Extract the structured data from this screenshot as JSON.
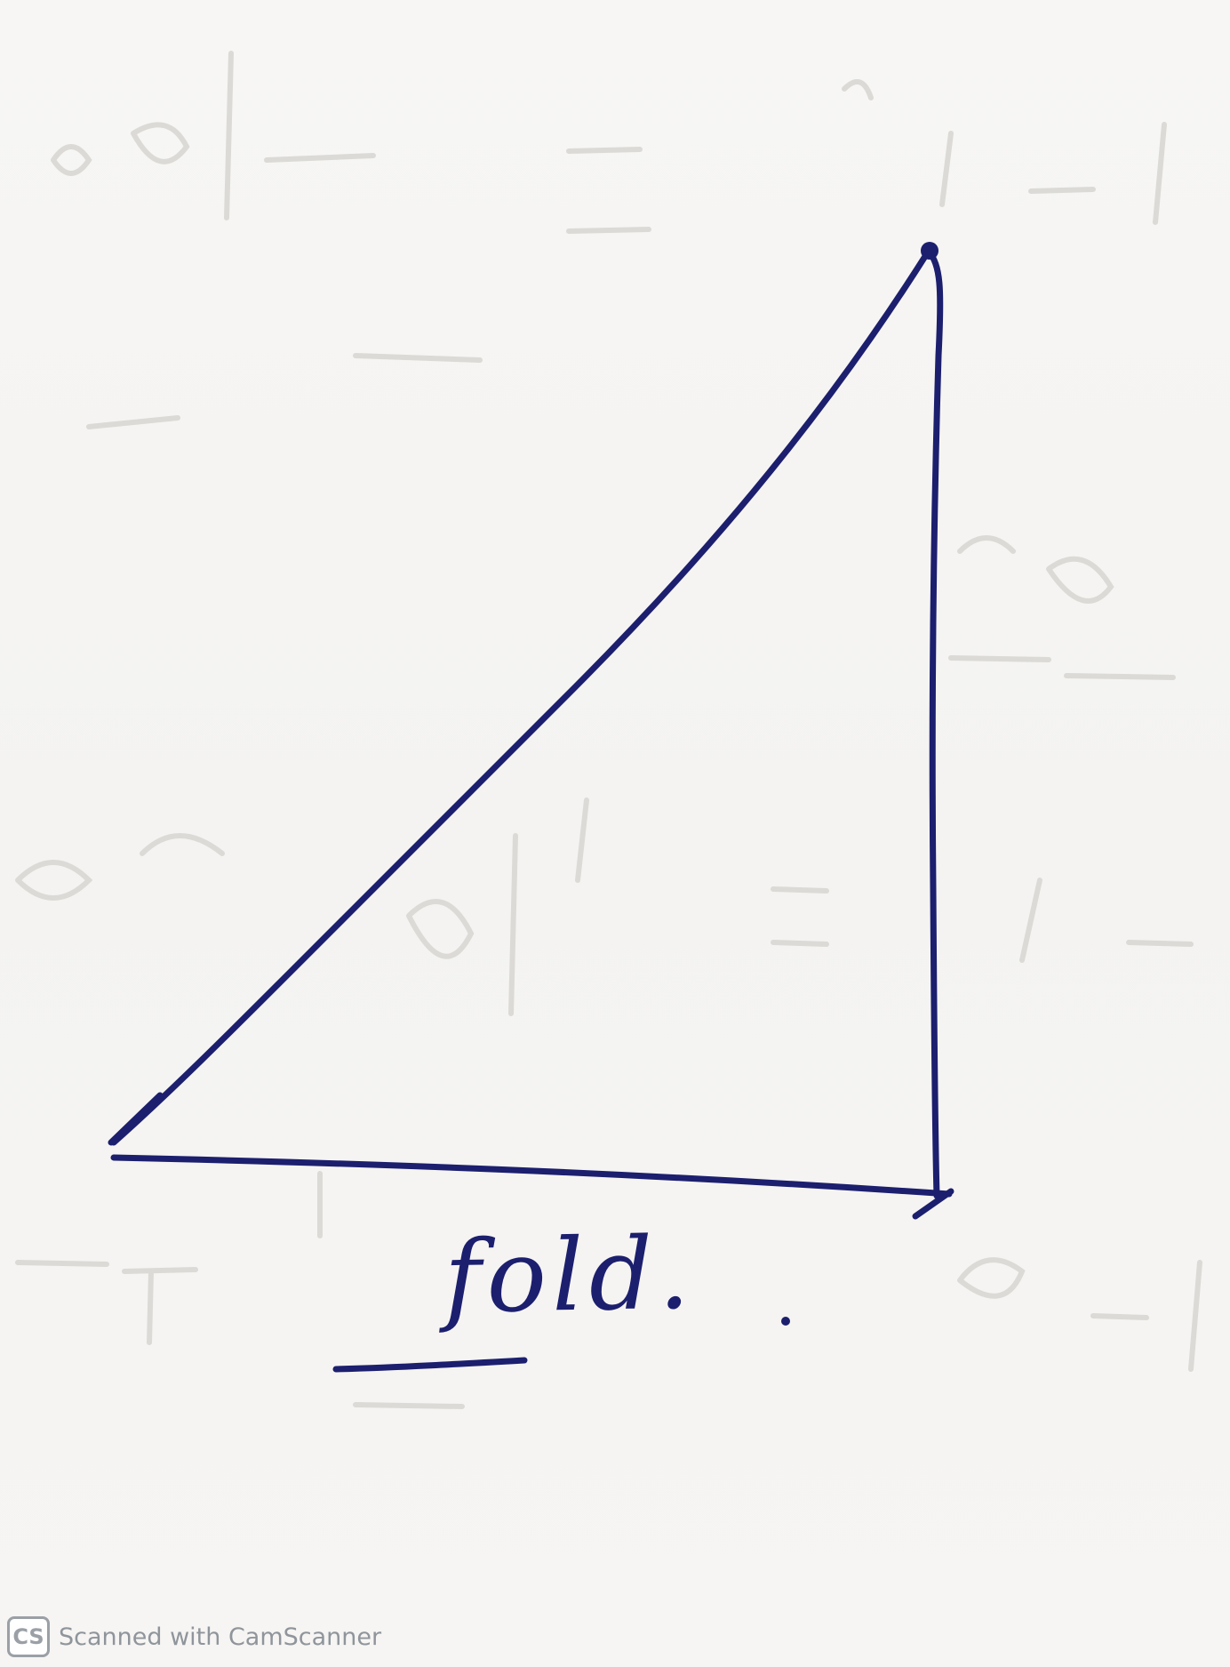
{
  "handwriting": {
    "label": "fold."
  },
  "watermark": {
    "logo_text": "CS",
    "text": "Scanned with CamScanner",
    "icon": "camscanner-logo-icon"
  },
  "colors": {
    "ink": "#1c1f6e",
    "paper": "#f6f5f3",
    "bleed": "#d9d7d3",
    "watermark": "#8f959b"
  }
}
